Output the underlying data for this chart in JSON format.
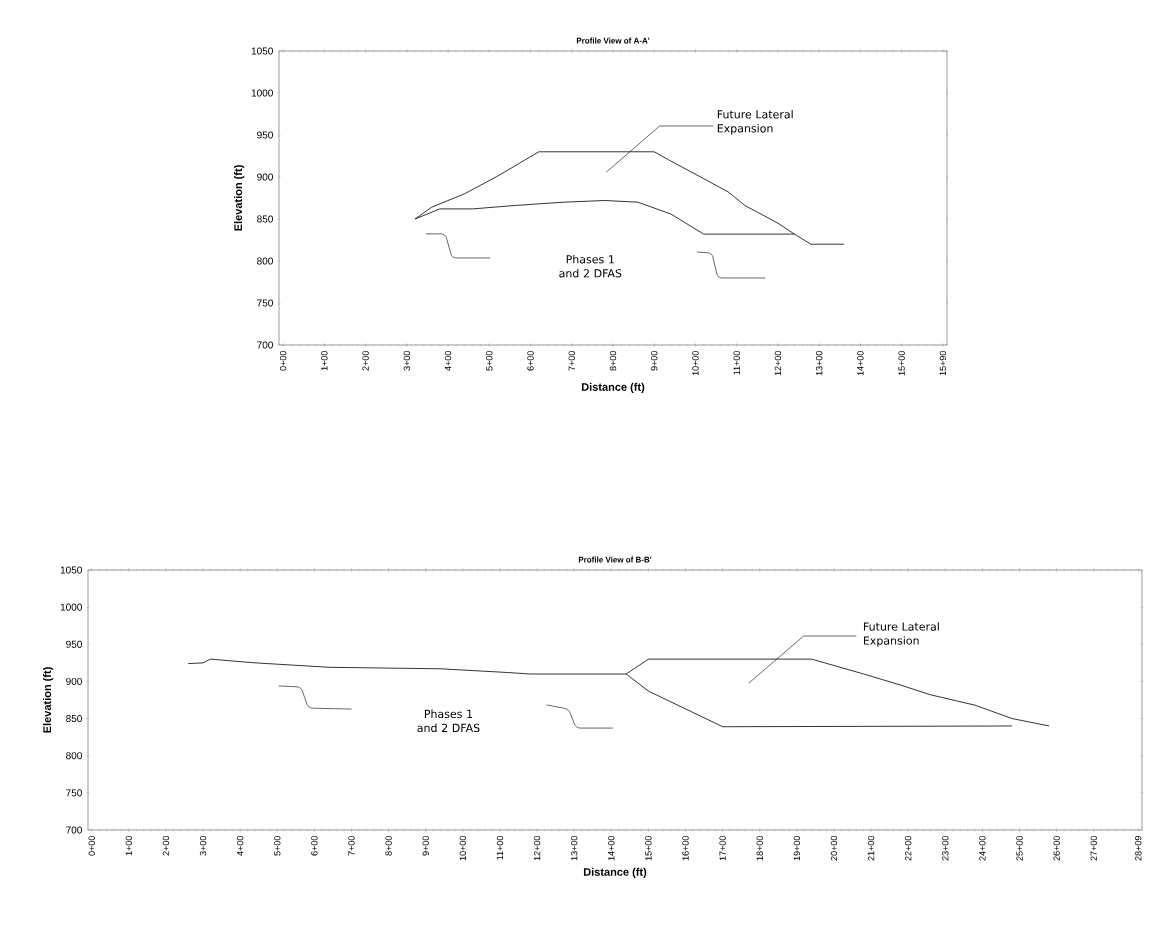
{
  "chart_data": [
    {
      "type": "line",
      "title": "Profile View of  A-A'",
      "xlabel": "Distance (ft)",
      "ylabel": "Elevation (ft)",
      "ylim": [
        700,
        1050
      ],
      "categories": [
        "0+00",
        null,
        null,
        null,
        null,
        "1+00",
        null,
        null,
        null,
        null,
        "2+00",
        null,
        null,
        null,
        null,
        "3+00",
        null,
        null,
        null,
        null,
        "4+00",
        null,
        null,
        null,
        null,
        "5+00",
        null,
        null,
        null,
        null,
        "6+00",
        null,
        null,
        null,
        null,
        "7+00",
        null,
        null,
        null,
        null,
        "8+00",
        null,
        null,
        null,
        null,
        "9+00",
        null,
        null,
        null,
        null,
        "10+00",
        null,
        null,
        null,
        null,
        "11+00",
        null,
        null,
        null,
        null,
        "12+00",
        null,
        null,
        null,
        null,
        "13+00",
        null,
        null,
        null,
        null,
        "14+00",
        null,
        null,
        null,
        null,
        "15+00",
        null,
        null,
        null,
        null,
        "15+90"
      ],
      "yticks": [
        700,
        750,
        800,
        850,
        900,
        950,
        1000,
        1050
      ],
      "annotations": [
        "Future Lateral Expansion",
        "Phases 1 and 2 DFAS"
      ],
      "series": [
        {
          "color": "#000000",
          "values": [
            null,
            null,
            null,
            null,
            null,
            null,
            null,
            null,
            null,
            null,
            null,
            null,
            null,
            null,
            null,
            null,
            850,
            null,
            null,
            862,
            null,
            null,
            null,
            862,
            null,
            null,
            null,
            null,
            866,
            null,
            null,
            null,
            null,
            null,
            870,
            null,
            null,
            null,
            null,
            872,
            null,
            null,
            null,
            870,
            null,
            null,
            null,
            856,
            null,
            null,
            null,
            832,
            null,
            null,
            null,
            null,
            null,
            null,
            null,
            null,
            null,
            null,
            832,
            null,
            null,
            null,
            null,
            null,
            null,
            null,
            null,
            null,
            null,
            null,
            null,
            null,
            null,
            null,
            null,
            null,
            null
          ]
        },
        {
          "color": "#000000",
          "values": [
            null,
            null,
            null,
            null,
            null,
            null,
            null,
            null,
            null,
            null,
            null,
            null,
            null,
            null,
            null,
            null,
            850,
            null,
            864,
            null,
            null,
            null,
            880,
            null,
            null,
            null,
            901,
            null,
            null,
            null,
            null,
            930,
            null,
            null,
            null,
            null,
            null,
            null,
            null,
            null,
            null,
            null,
            null,
            null,
            null,
            930,
            null,
            919,
            null,
            null,
            null,
            898,
            null,
            null,
            882,
            null,
            866,
            null,
            null,
            null,
            845,
            null,
            832,
            null,
            820,
            null,
            null,
            null,
            820,
            null,
            null,
            null,
            null,
            null,
            null,
            null,
            null,
            null,
            null,
            null,
            null
          ]
        }
      ]
    },
    {
      "type": "line",
      "title": "Profile View of  B-B'",
      "xlabel": "Distance (ft)",
      "ylabel": "Elevation (ft)",
      "ylim": [
        700,
        1050
      ],
      "categories": [
        "0+00",
        null,
        null,
        null,
        null,
        "1+00",
        null,
        null,
        null,
        null,
        "2+00",
        null,
        null,
        null,
        null,
        "3+00",
        null,
        null,
        null,
        null,
        "4+00",
        null,
        null,
        null,
        null,
        "5+00",
        null,
        null,
        null,
        null,
        "6+00",
        null,
        null,
        null,
        null,
        "7+00",
        null,
        null,
        null,
        null,
        "8+00",
        null,
        null,
        null,
        null,
        "9+00",
        null,
        null,
        null,
        null,
        "10+00",
        null,
        null,
        null,
        null,
        "11+00",
        null,
        null,
        null,
        null,
        "12+00",
        null,
        null,
        null,
        null,
        "13+00",
        null,
        null,
        null,
        null,
        "14+00",
        null,
        null,
        null,
        null,
        "15+00",
        null,
        null,
        null,
        null,
        "16+00",
        null,
        null,
        null,
        null,
        "17+00",
        null,
        null,
        null,
        null,
        "18+00",
        null,
        null,
        null,
        null,
        "19+00",
        null,
        null,
        null,
        null,
        "20+00",
        null,
        null,
        null,
        null,
        "21+00",
        null,
        null,
        null,
        null,
        "22+00",
        null,
        null,
        null,
        null,
        "23+00",
        null,
        null,
        null,
        null,
        "24+00",
        null,
        null,
        null,
        null,
        "25+00",
        null,
        null,
        null,
        null,
        "26+00",
        null,
        null,
        null,
        null,
        "27+00",
        null,
        null,
        null,
        null,
        null,
        "28+09"
      ],
      "yticks": [
        700,
        750,
        800,
        850,
        900,
        950,
        1000,
        1050
      ],
      "annotations": [
        "Future Lateral Expansion",
        "Phases 1 and 2 DFAS"
      ],
      "series": [
        {
          "color": "#000000",
          "values": [
            null,
            null,
            null,
            null,
            null,
            null,
            null,
            null,
            null,
            null,
            null,
            null,
            null,
            924,
            null,
            925,
            930,
            null,
            null,
            null,
            null,
            null,
            925,
            null,
            null,
            null,
            null,
            null,
            null,
            null,
            null,
            null,
            919,
            null,
            null,
            null,
            null,
            null,
            null,
            null,
            null,
            null,
            null,
            null,
            null,
            null,
            null,
            917,
            null,
            null,
            null,
            null,
            null,
            null,
            null,
            null,
            912,
            null,
            null,
            910,
            null,
            null,
            null,
            null,
            null,
            null,
            null,
            null,
            null,
            null,
            null,
            null,
            910,
            null,
            null,
            887,
            null,
            null,
            null,
            null,
            null,
            null,
            null,
            null,
            null,
            839,
            null,
            null,
            null,
            null,
            null,
            null,
            null,
            null,
            null,
            null,
            null,
            null,
            null,
            null,
            null,
            null,
            null,
            null,
            null,
            null,
            null,
            null,
            null,
            null,
            null,
            null,
            null,
            null,
            null,
            null,
            null,
            null,
            null,
            null,
            null,
            null,
            null,
            null,
            840,
            null,
            null,
            null,
            null,
            null,
            null,
            null,
            null,
            null,
            null,
            null,
            null,
            null,
            null,
            null,
            null,
            null
          ]
        },
        {
          "color": "#000000",
          "values": [
            null,
            null,
            null,
            null,
            null,
            null,
            null,
            null,
            null,
            null,
            null,
            null,
            null,
            null,
            null,
            null,
            null,
            null,
            null,
            null,
            null,
            null,
            null,
            null,
            null,
            null,
            null,
            null,
            null,
            null,
            null,
            null,
            null,
            null,
            null,
            null,
            null,
            null,
            null,
            null,
            null,
            null,
            null,
            null,
            null,
            null,
            null,
            null,
            null,
            null,
            null,
            null,
            null,
            null,
            null,
            null,
            null,
            null,
            null,
            null,
            null,
            null,
            null,
            null,
            null,
            null,
            null,
            null,
            null,
            null,
            null,
            null,
            910,
            null,
            null,
            930,
            null,
            null,
            null,
            null,
            null,
            null,
            null,
            null,
            null,
            null,
            null,
            null,
            null,
            null,
            null,
            null,
            null,
            null,
            null,
            null,
            null,
            930,
            null,
            null,
            null,
            null,
            null,
            null,
            910,
            null,
            null,
            null,
            null,
            895,
            null,
            null,
            null,
            882,
            null,
            null,
            null,
            null,
            null,
            868,
            null,
            null,
            null,
            null,
            850,
            null,
            null,
            null,
            null,
            840,
            null,
            null,
            null,
            null,
            null,
            null,
            null,
            null,
            null,
            null,
            null,
            null
          ]
        }
      ]
    }
  ]
}
